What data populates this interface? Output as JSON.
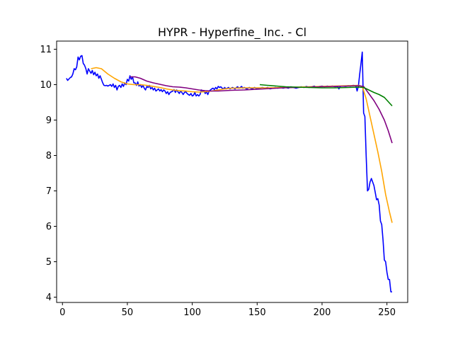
{
  "chart_data": {
    "type": "line",
    "title": "HYPR - Hyperfine_ Inc.  - Cl",
    "xlabel": "",
    "ylabel": "",
    "xlim": [
      -4.5,
      266
    ],
    "ylim": [
      3.85,
      11.23
    ],
    "x_ticks": [
      0,
      50,
      100,
      150,
      200,
      250
    ],
    "y_ticks": [
      4,
      5,
      6,
      7,
      8,
      9,
      10,
      11
    ],
    "grid": false,
    "legend": "none",
    "series": [
      {
        "color": "#0000ff",
        "points": [
          [
            3,
            10.18
          ],
          [
            4,
            10.12
          ],
          [
            5,
            10.16
          ],
          [
            6,
            10.2
          ],
          [
            7,
            10.22
          ],
          [
            8,
            10.3
          ],
          [
            9,
            10.45
          ],
          [
            10,
            10.42
          ],
          [
            11,
            10.5
          ],
          [
            12,
            10.78
          ],
          [
            13,
            10.7
          ],
          [
            14,
            10.8
          ],
          [
            15,
            10.82
          ],
          [
            16,
            10.6
          ],
          [
            17,
            10.55
          ],
          [
            18,
            10.45
          ],
          [
            19,
            10.3
          ],
          [
            20,
            10.45
          ],
          [
            21,
            10.38
          ],
          [
            22,
            10.32
          ],
          [
            23,
            10.4
          ],
          [
            24,
            10.28
          ],
          [
            25,
            10.35
          ],
          [
            26,
            10.25
          ],
          [
            27,
            10.3
          ],
          [
            28,
            10.18
          ],
          [
            29,
            10.25
          ],
          [
            30,
            10.15
          ],
          [
            31,
            10.05
          ],
          [
            32,
            9.98
          ],
          [
            33,
            9.97
          ],
          [
            34,
            9.98
          ],
          [
            35,
            9.96
          ],
          [
            36,
            9.98
          ],
          [
            37,
            10.0
          ],
          [
            38,
            9.95
          ],
          [
            39,
            10.02
          ],
          [
            40,
            9.92
          ],
          [
            41,
            9.98
          ],
          [
            42,
            9.85
          ],
          [
            43,
            9.95
          ],
          [
            44,
            9.98
          ],
          [
            45,
            9.92
          ],
          [
            46,
            10.02
          ],
          [
            47,
            9.95
          ],
          [
            48,
            10.05
          ],
          [
            49,
            10.0
          ],
          [
            50,
            10.15
          ],
          [
            51,
            10.1
          ],
          [
            52,
            10.25
          ],
          [
            53,
            10.15
          ],
          [
            54,
            10.22
          ],
          [
            55,
            10.05
          ],
          [
            56,
            10.05
          ],
          [
            57,
            9.98
          ],
          [
            58,
            10.08
          ],
          [
            59,
            9.96
          ],
          [
            60,
            10.0
          ],
          [
            61,
            9.92
          ],
          [
            62,
            9.98
          ],
          [
            63,
            9.9
          ],
          [
            64,
            9.85
          ],
          [
            65,
            9.95
          ],
          [
            66,
            9.92
          ],
          [
            67,
            9.98
          ],
          [
            68,
            9.88
          ],
          [
            69,
            9.92
          ],
          [
            70,
            9.85
          ],
          [
            71,
            9.9
          ],
          [
            72,
            9.82
          ],
          [
            73,
            9.85
          ],
          [
            74,
            9.88
          ],
          [
            75,
            9.82
          ],
          [
            76,
            9.86
          ],
          [
            77,
            9.8
          ],
          [
            78,
            9.85
          ],
          [
            79,
            9.82
          ],
          [
            80,
            9.75
          ],
          [
            81,
            9.8
          ],
          [
            82,
            9.72
          ],
          [
            83,
            9.78
          ],
          [
            84,
            9.8
          ],
          [
            85,
            9.82
          ],
          [
            86,
            9.86
          ],
          [
            87,
            9.78
          ],
          [
            88,
            9.85
          ],
          [
            89,
            9.8
          ],
          [
            90,
            9.75
          ],
          [
            91,
            9.82
          ],
          [
            92,
            9.78
          ],
          [
            93,
            9.72
          ],
          [
            94,
            9.78
          ],
          [
            95,
            9.8
          ],
          [
            96,
            9.75
          ],
          [
            97,
            9.72
          ],
          [
            98,
            9.7
          ],
          [
            99,
            9.75
          ],
          [
            100,
            9.68
          ],
          [
            101,
            9.7
          ],
          [
            102,
            9.78
          ],
          [
            103,
            9.68
          ],
          [
            104,
            9.72
          ],
          [
            105,
            9.68
          ],
          [
            106,
            9.72
          ],
          [
            107,
            9.85
          ],
          [
            108,
            9.82
          ],
          [
            109,
            9.82
          ],
          [
            110,
            9.75
          ],
          [
            111,
            9.8
          ],
          [
            112,
            9.72
          ],
          [
            113,
            9.82
          ],
          [
            114,
            9.85
          ],
          [
            115,
            9.88
          ],
          [
            116,
            9.9
          ],
          [
            117,
            9.86
          ],
          [
            118,
            9.92
          ],
          [
            119,
            9.88
          ],
          [
            120,
            9.95
          ],
          [
            121,
            9.92
          ],
          [
            122,
            9.94
          ],
          [
            123,
            9.9
          ],
          [
            124,
            9.88
          ],
          [
            125,
            9.92
          ],
          [
            126,
            9.88
          ],
          [
            127,
            9.9
          ],
          [
            128,
            9.92
          ],
          [
            129,
            9.88
          ],
          [
            130,
            9.9
          ],
          [
            131,
            9.92
          ],
          [
            132,
            9.9
          ],
          [
            133,
            9.88
          ],
          [
            134,
            9.92
          ],
          [
            135,
            9.94
          ],
          [
            136,
            9.9
          ],
          [
            137,
            9.92
          ],
          [
            138,
            9.95
          ],
          [
            139,
            9.9
          ],
          [
            140,
            9.92
          ],
          [
            141,
            9.9
          ],
          [
            142,
            9.88
          ],
          [
            143,
            9.9
          ],
          [
            144,
            9.92
          ],
          [
            145,
            9.9
          ],
          [
            146,
            9.88
          ],
          [
            147,
            9.9
          ],
          [
            148,
            9.92
          ],
          [
            149,
            9.9
          ],
          [
            150,
            9.88
          ],
          [
            152,
            9.9
          ],
          [
            154,
            9.92
          ],
          [
            156,
            9.9
          ],
          [
            158,
            9.92
          ],
          [
            160,
            9.88
          ],
          [
            162,
            9.9
          ],
          [
            164,
            9.92
          ],
          [
            166,
            9.9
          ],
          [
            168,
            9.92
          ],
          [
            170,
            9.9
          ],
          [
            172,
            9.92
          ],
          [
            174,
            9.9
          ],
          [
            176,
            9.94
          ],
          [
            178,
            9.92
          ],
          [
            180,
            9.9
          ],
          [
            182,
            9.92
          ],
          [
            184,
            9.94
          ],
          [
            186,
            9.92
          ],
          [
            188,
            9.95
          ],
          [
            190,
            9.92
          ],
          [
            192,
            9.94
          ],
          [
            194,
            9.96
          ],
          [
            196,
            9.92
          ],
          [
            198,
            9.95
          ],
          [
            200,
            9.96
          ],
          [
            202,
            9.94
          ],
          [
            204,
            9.96
          ],
          [
            206,
            9.95
          ],
          [
            208,
            9.96
          ],
          [
            210,
            9.94
          ],
          [
            212,
            9.95
          ],
          [
            213,
            9.88
          ],
          [
            214,
            9.95
          ],
          [
            216,
            9.96
          ],
          [
            218,
            9.95
          ],
          [
            220,
            9.97
          ],
          [
            222,
            9.96
          ],
          [
            224,
            9.98
          ],
          [
            226,
            9.97
          ],
          [
            227,
            9.82
          ],
          [
            228,
            9.95
          ],
          [
            229,
            10.3
          ],
          [
            230,
            10.6
          ],
          [
            231,
            10.92
          ],
          [
            232,
            9.2
          ],
          [
            233,
            9.1
          ],
          [
            234,
            8.0
          ],
          [
            235,
            7.0
          ],
          [
            236,
            7.05
          ],
          [
            237,
            7.25
          ],
          [
            238,
            7.35
          ],
          [
            239,
            7.25
          ],
          [
            240,
            7.15
          ],
          [
            241,
            6.95
          ],
          [
            242,
            6.75
          ],
          [
            243,
            6.78
          ],
          [
            244,
            6.6
          ],
          [
            245,
            6.15
          ],
          [
            246,
            6.05
          ],
          [
            247,
            5.6
          ],
          [
            248,
            5.05
          ],
          [
            249,
            5.0
          ],
          [
            250,
            4.7
          ],
          [
            251,
            4.5
          ],
          [
            252,
            4.5
          ],
          [
            253,
            4.15
          ],
          [
            254,
            4.15
          ]
        ]
      },
      {
        "color": "#ffa500",
        "points": [
          [
            22,
            10.45
          ],
          [
            26,
            10.48
          ],
          [
            30,
            10.45
          ],
          [
            35,
            10.3
          ],
          [
            40,
            10.18
          ],
          [
            45,
            10.08
          ],
          [
            50,
            10.02
          ],
          [
            55,
            10.0
          ],
          [
            60,
            10.0
          ],
          [
            65,
            9.98
          ],
          [
            70,
            9.95
          ],
          [
            75,
            9.92
          ],
          [
            80,
            9.88
          ],
          [
            85,
            9.85
          ],
          [
            90,
            9.83
          ],
          [
            95,
            9.82
          ],
          [
            100,
            9.8
          ],
          [
            105,
            9.79
          ],
          [
            110,
            9.8
          ],
          [
            115,
            9.82
          ],
          [
            120,
            9.85
          ],
          [
            125,
            9.88
          ],
          [
            130,
            9.9
          ],
          [
            140,
            9.91
          ],
          [
            150,
            9.91
          ],
          [
            160,
            9.91
          ],
          [
            170,
            9.92
          ],
          [
            180,
            9.93
          ],
          [
            190,
            9.94
          ],
          [
            200,
            9.95
          ],
          [
            210,
            9.96
          ],
          [
            220,
            9.97
          ],
          [
            228,
            9.98
          ],
          [
            231,
            9.95
          ],
          [
            234,
            9.6
          ],
          [
            237,
            9.1
          ],
          [
            240,
            8.6
          ],
          [
            243,
            8.1
          ],
          [
            246,
            7.55
          ],
          [
            249,
            6.9
          ],
          [
            252,
            6.4
          ],
          [
            254,
            6.1
          ]
        ]
      },
      {
        "color": "#800080",
        "points": [
          [
            52,
            10.22
          ],
          [
            56,
            10.22
          ],
          [
            60,
            10.18
          ],
          [
            65,
            10.1
          ],
          [
            70,
            10.05
          ],
          [
            75,
            10.01
          ],
          [
            80,
            9.97
          ],
          [
            85,
            9.94
          ],
          [
            90,
            9.93
          ],
          [
            95,
            9.91
          ],
          [
            100,
            9.88
          ],
          [
            105,
            9.85
          ],
          [
            110,
            9.83
          ],
          [
            115,
            9.82
          ],
          [
            120,
            9.82
          ],
          [
            125,
            9.83
          ],
          [
            130,
            9.84
          ],
          [
            140,
            9.85
          ],
          [
            150,
            9.87
          ],
          [
            160,
            9.89
          ],
          [
            170,
            9.91
          ],
          [
            180,
            9.92
          ],
          [
            190,
            9.93
          ],
          [
            200,
            9.94
          ],
          [
            210,
            9.95
          ],
          [
            220,
            9.96
          ],
          [
            228,
            9.97
          ],
          [
            232,
            9.95
          ],
          [
            236,
            9.75
          ],
          [
            240,
            9.55
          ],
          [
            244,
            9.3
          ],
          [
            248,
            9.0
          ],
          [
            251,
            8.7
          ],
          [
            254,
            8.35
          ]
        ]
      },
      {
        "color": "#008000",
        "points": [
          [
            152,
            10.0
          ],
          [
            158,
            9.98
          ],
          [
            165,
            9.96
          ],
          [
            172,
            9.94
          ],
          [
            180,
            9.93
          ],
          [
            190,
            9.92
          ],
          [
            200,
            9.91
          ],
          [
            210,
            9.91
          ],
          [
            220,
            9.92
          ],
          [
            228,
            9.93
          ],
          [
            232,
            9.92
          ],
          [
            236,
            9.85
          ],
          [
            240,
            9.78
          ],
          [
            244,
            9.72
          ],
          [
            248,
            9.64
          ],
          [
            251,
            9.52
          ],
          [
            254,
            9.4
          ]
        ]
      }
    ]
  }
}
